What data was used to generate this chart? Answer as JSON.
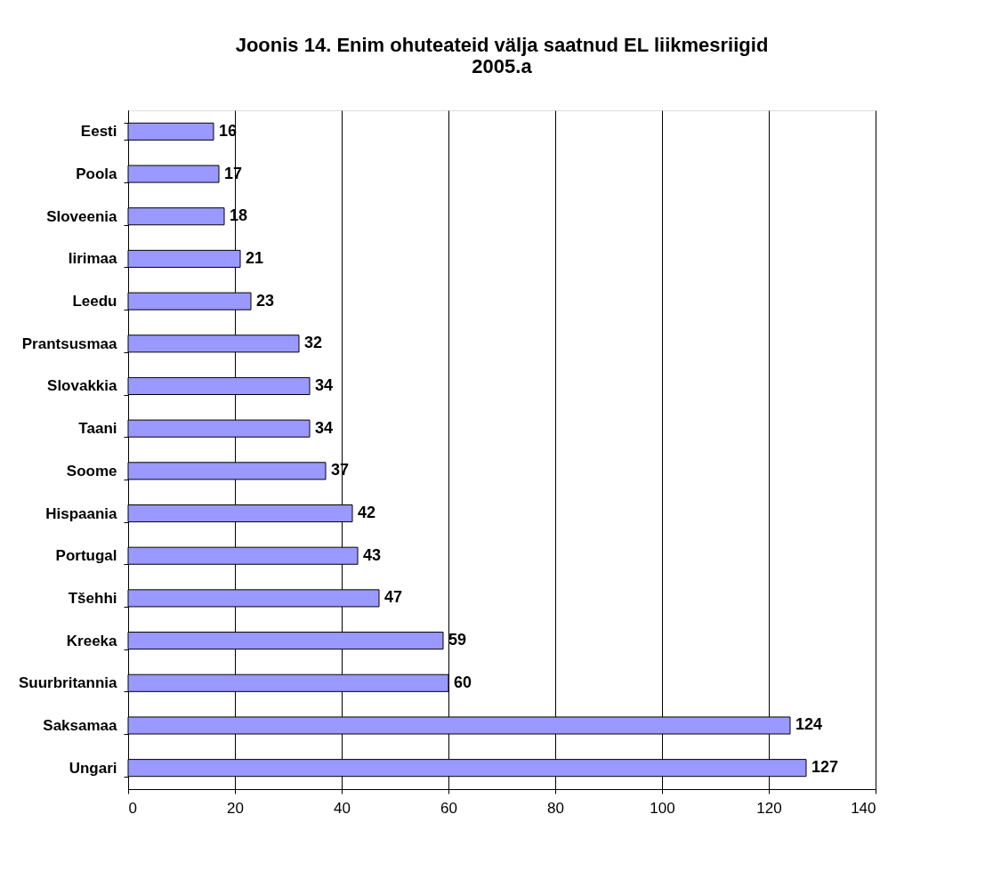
{
  "chart_data": {
    "type": "bar",
    "orientation": "horizontal",
    "title": "Joonis 14. Enim ohuteateid välja saatnud EL liikmesriigid\n2005.a",
    "categories": [
      "Eesti",
      "Poola",
      "Sloveenia",
      "Iirimaa",
      "Leedu",
      "Prantsusmaa",
      "Slovakkia",
      "Taani",
      "Soome",
      "Hispaania",
      "Portugal",
      "Tšehhi",
      "Kreeka",
      "Suurbritannia",
      "Saksamaa",
      "Ungari"
    ],
    "values": [
      16,
      17,
      18,
      21,
      23,
      32,
      34,
      34,
      37,
      42,
      43,
      47,
      59,
      60,
      124,
      127
    ],
    "color": "#9999ff",
    "xlim": [
      0,
      140
    ],
    "xticks": [
      0,
      20,
      40,
      60,
      80,
      100,
      120,
      140
    ],
    "grid": "x",
    "data_labels": true
  }
}
